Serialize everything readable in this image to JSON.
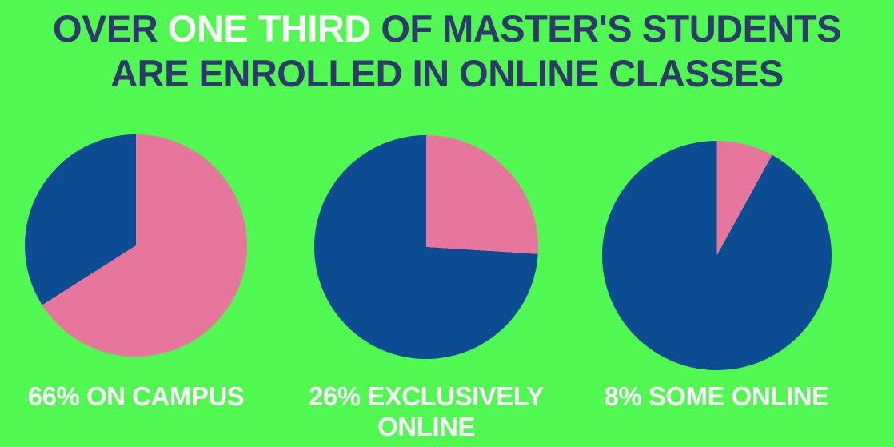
{
  "colors": {
    "background": "#52F852",
    "title_navy": "#2E3A69",
    "highlight_white": "#FFFFFF",
    "pie_blue": "#0B4C92",
    "pie_pink": "#E7769D"
  },
  "title": {
    "full_text": "OVER ONE THIRD OF MASTER'S STUDENTS ARE ENROLLED IN ONLINE CLASSES",
    "segments": [
      {
        "text": "OVER ",
        "emphasis": false
      },
      {
        "text": "ONE THIRD",
        "emphasis": true
      },
      {
        "text": " OF MASTER'S STUDENTS ARE ENROLLED IN ONLINE CLASSES",
        "emphasis": false
      }
    ]
  },
  "chart_data": [
    {
      "type": "pie",
      "caption": "66% ON CAMPUS",
      "start": "12 o'clock",
      "direction": "clockwise",
      "slices": [
        {
          "label": "On campus",
          "value": 66,
          "color": "#E7769D"
        },
        {
          "label": "Remainder",
          "value": 34,
          "color": "#0B4C92"
        }
      ]
    },
    {
      "type": "pie",
      "caption": "26% EXCLUSIVELY ONLINE",
      "start": "12 o'clock",
      "direction": "clockwise",
      "slices": [
        {
          "label": "Exclusively online",
          "value": 26,
          "color": "#E7769D"
        },
        {
          "label": "Remainder",
          "value": 74,
          "color": "#0B4C92"
        }
      ]
    },
    {
      "type": "pie",
      "caption": "8% SOME ONLINE",
      "start": "12 o'clock",
      "direction": "clockwise",
      "slices": [
        {
          "label": "Some online",
          "value": 8,
          "color": "#E7769D"
        },
        {
          "label": "Remainder",
          "value": 92,
          "color": "#0B4C92"
        }
      ]
    }
  ]
}
